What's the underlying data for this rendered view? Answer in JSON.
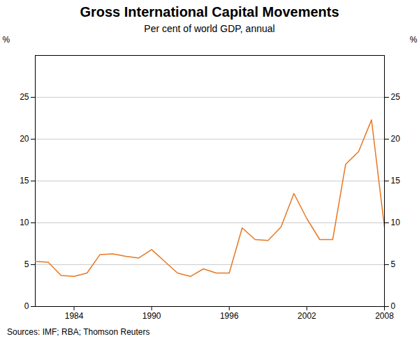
{
  "chart_data": {
    "type": "line",
    "title": "Gross International Capital Movements",
    "subtitle": "Per cent of world GDP, annual",
    "source": "Sources: IMF; RBA; Thomson Reuters",
    "ylabel": "%",
    "y2label": "%",
    "color": "#E87722",
    "x": [
      1981,
      1982,
      1983,
      1984,
      1985,
      1986,
      1987,
      1988,
      1989,
      1990,
      1991,
      1992,
      1993,
      1994,
      1995,
      1996,
      1997,
      1998,
      1999,
      2000,
      2001,
      2002,
      2003,
      2004,
      2005,
      2006,
      2007,
      2008
    ],
    "values": [
      5.4,
      5.3,
      3.7,
      3.6,
      4.0,
      6.2,
      6.3,
      6.0,
      5.8,
      6.8,
      5.4,
      4.0,
      3.6,
      4.5,
      4.0,
      4.0,
      9.4,
      8.0,
      7.9,
      9.5,
      13.5,
      10.5,
      8.0,
      8.0,
      17.0,
      18.5,
      22.3,
      9.5
    ],
    "xlim": [
      1981,
      2008
    ],
    "xticks": [
      1984,
      1990,
      1996,
      2002,
      2008
    ],
    "ylim": [
      0,
      30
    ],
    "yticks": [
      0,
      5,
      10,
      15,
      20,
      25
    ],
    "y2lim": [
      0,
      30
    ],
    "y2ticks": [
      0,
      5,
      10,
      15,
      20,
      25
    ],
    "grid": true
  }
}
